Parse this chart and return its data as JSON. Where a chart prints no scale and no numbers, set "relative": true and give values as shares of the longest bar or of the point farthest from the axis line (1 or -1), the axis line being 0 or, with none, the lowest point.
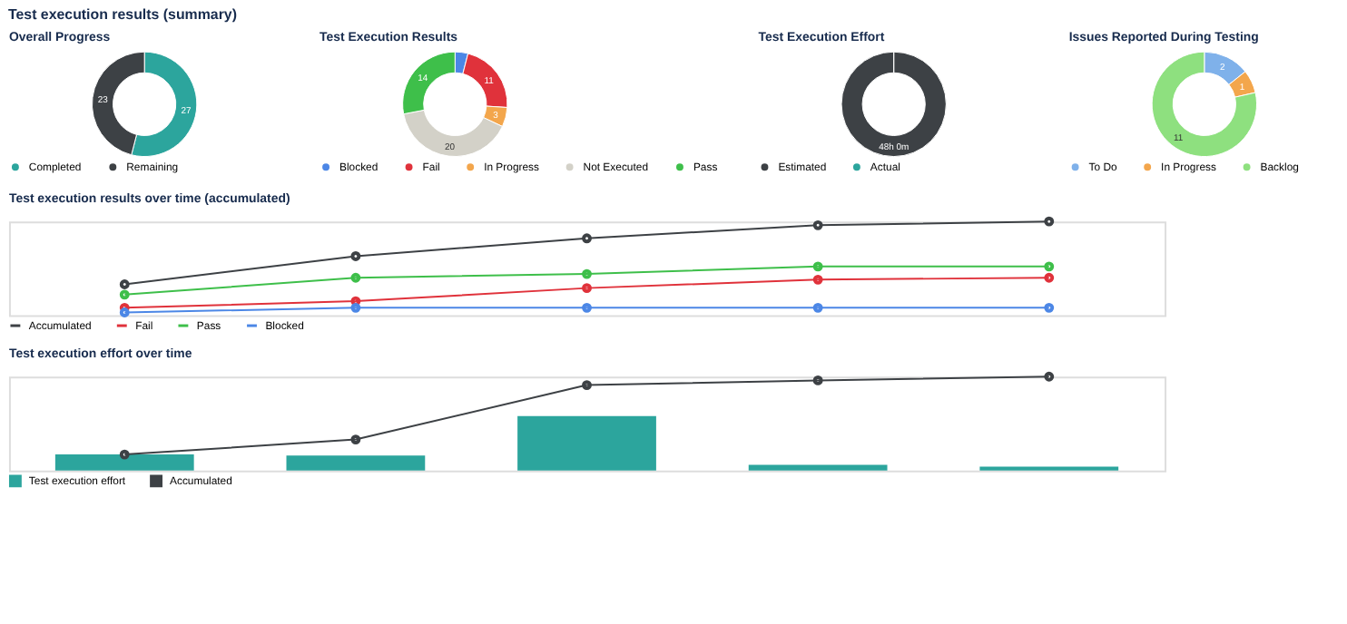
{
  "chart_data": [
    {
      "type": "other",
      "title": "Test execution results (summary)"
    },
    {
      "type": "donut",
      "title": "Overall Progress",
      "categories": [
        "Completed",
        "Remaining"
      ],
      "values": [
        27,
        23
      ],
      "colors": [
        "#2ca59d",
        "#3d4145"
      ],
      "data_labels": true,
      "legend": "bottom"
    },
    {
      "type": "donut",
      "title": "Test Execution Results",
      "categories": [
        "Blocked",
        "Fail",
        "In Progress",
        "Not Executed",
        "Pass"
      ],
      "values": [
        2,
        11,
        3,
        20,
        14
      ],
      "value_labels": [
        null,
        "11",
        "3",
        "20",
        "14"
      ],
      "colors": [
        "#4c87e6",
        "#e0323b",
        "#f3a64c",
        "#d3d1c8",
        "#3ebf4a"
      ],
      "legend": "bottom"
    },
    {
      "type": "donut",
      "title": "Test Execution Effort",
      "categories": [
        "Estimated",
        "Actual"
      ],
      "values": [
        48,
        0
      ],
      "value_labels": [
        "48h 0m",
        null
      ],
      "colors": [
        "#3d4145",
        "#2ca59d"
      ],
      "legend": "bottom"
    },
    {
      "type": "donut",
      "title": "Issues Reported During Testing",
      "categories": [
        "To Do",
        "In Progress",
        "Backlog"
      ],
      "values": [
        2,
        1,
        11
      ],
      "colors": [
        "#7fb1ea",
        "#f3a64c",
        "#8ee07f"
      ],
      "data_labels": true,
      "legend": "bottom"
    },
    {
      "type": "line",
      "title": "Test execution results over time (accumulated)",
      "relative": true,
      "categories": [
        null,
        null,
        null,
        null,
        null
      ],
      "marker": "circle",
      "legend": "bottom",
      "series": [
        {
          "name": "Accumulated",
          "color": "#3d4145",
          "values": [
            0.33,
            0.63,
            0.82,
            0.96,
            1.0
          ]
        },
        {
          "name": "Fail",
          "color": "#e0323b",
          "values": [
            0.08,
            0.15,
            0.29,
            0.38,
            0.4
          ]
        },
        {
          "name": "Pass",
          "color": "#3ebf4a",
          "values": [
            0.22,
            0.4,
            0.44,
            0.52,
            0.52
          ]
        },
        {
          "name": "Blocked",
          "color": "#4c87e6",
          "values": [
            0.03,
            0.08,
            0.08,
            0.08,
            0.08
          ]
        }
      ]
    },
    {
      "type": "bar",
      "title": "Test execution effort over time",
      "relative": true,
      "categories": [
        null,
        null,
        null,
        null,
        null
      ],
      "marker": "circle",
      "legend": "bottom",
      "series": [
        {
          "name": "Test execution effort",
          "type": "bar",
          "color": "#2ca59d",
          "values": [
            0.17,
            0.16,
            0.58,
            0.06,
            0.04
          ]
        },
        {
          "name": "Accumulated",
          "type": "line",
          "color": "#3d4145",
          "values": [
            0.17,
            0.33,
            0.91,
            0.96,
            1.0
          ]
        }
      ]
    }
  ]
}
